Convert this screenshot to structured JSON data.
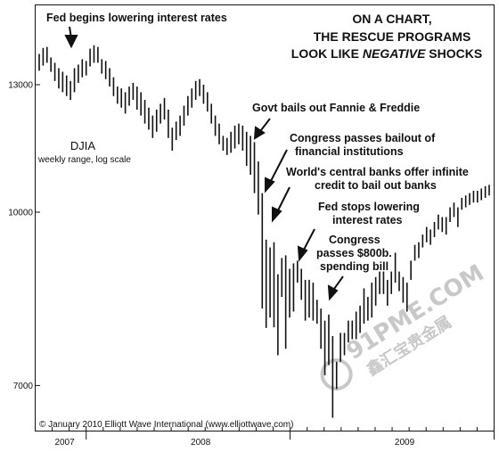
{
  "chart_data": {
    "type": "bar",
    "subtype": "weekly range bars",
    "title_lines": [
      "ON A CHART,",
      "THE RESCUE PROGRAMS",
      "LOOK LIKE ",
      "NEGATIVE",
      " SHOCKS"
    ],
    "series_name": "DJIA",
    "series_note": "weekly range, log scale",
    "y_scale": "log",
    "y_ticks": [
      13000,
      10000,
      7000
    ],
    "y_tick_labels": [
      "13000",
      "10000",
      "7000"
    ],
    "ylim": [
      6400,
      14800
    ],
    "x_ticks": [
      "2007",
      "2008",
      "2009"
    ],
    "x_range": [
      "2007-10",
      "2010-01"
    ],
    "weeks": [
      [
        13380,
        13850
      ],
      [
        13520,
        14020
      ],
      [
        13600,
        14050
      ],
      [
        13350,
        13750
      ],
      [
        13100,
        13600
      ],
      [
        12900,
        13450
      ],
      [
        12800,
        13350
      ],
      [
        12700,
        13250
      ],
      [
        12600,
        13100
      ],
      [
        12800,
        13450
      ],
      [
        13050,
        13550
      ],
      [
        13200,
        13700
      ],
      [
        13250,
        13650
      ],
      [
        13500,
        14000
      ],
      [
        13600,
        14100
      ],
      [
        13600,
        14050
      ],
      [
        13300,
        13700
      ],
      [
        13150,
        13650
      ],
      [
        12950,
        13450
      ],
      [
        12700,
        13200
      ],
      [
        12500,
        12950
      ],
      [
        12400,
        12900
      ],
      [
        12250,
        12800
      ],
      [
        12450,
        12950
      ],
      [
        12600,
        13050
      ],
      [
        12350,
        12950
      ],
      [
        12200,
        12800
      ],
      [
        12000,
        12600
      ],
      [
        11850,
        12400
      ],
      [
        11650,
        12200
      ],
      [
        11800,
        12350
      ],
      [
        12000,
        12500
      ],
      [
        12100,
        12650
      ],
      [
        11650,
        12350
      ],
      [
        11350,
        11900
      ],
      [
        11600,
        12050
      ],
      [
        11700,
        12200
      ],
      [
        11950,
        12450
      ],
      [
        12200,
        12700
      ],
      [
        12400,
        12900
      ],
      [
        12600,
        13100
      ],
      [
        12700,
        13150
      ],
      [
        12500,
        13000
      ],
      [
        12300,
        12800
      ],
      [
        12000,
        12500
      ],
      [
        11700,
        12200
      ],
      [
        11500,
        12000
      ],
      [
        11350,
        11700
      ],
      [
        11250,
        11650
      ],
      [
        11300,
        11800
      ],
      [
        11400,
        11950
      ],
      [
        11500,
        12000
      ],
      [
        11350,
        11950
      ],
      [
        11000,
        11800
      ],
      [
        10800,
        11700
      ],
      [
        10400,
        11550
      ],
      [
        9950,
        11100
      ],
      [
        8200,
        10400
      ],
      [
        7880,
        9450
      ],
      [
        8050,
        9300
      ],
      [
        7890,
        9400
      ],
      [
        7450,
        8800
      ],
      [
        8400,
        9100
      ],
      [
        7550,
        9150
      ],
      [
        8050,
        8900
      ],
      [
        8150,
        9000
      ],
      [
        8650,
        9050
      ],
      [
        8350,
        8900
      ],
      [
        8000,
        8700
      ],
      [
        8050,
        8700
      ],
      [
        8000,
        8650
      ],
      [
        7950,
        8350
      ],
      [
        7550,
        8200
      ],
      [
        7150,
        8000
      ],
      [
        7300,
        8100
      ],
      [
        6550,
        7750
      ],
      [
        6950,
        7350
      ],
      [
        7350,
        7800
      ],
      [
        7450,
        7800
      ],
      [
        7650,
        8000
      ],
      [
        7700,
        8000
      ],
      [
        7700,
        8150
      ],
      [
        7800,
        8250
      ],
      [
        7950,
        8550
      ],
      [
        8000,
        8400
      ],
      [
        8050,
        8650
      ],
      [
        8250,
        8750
      ],
      [
        8450,
        8850
      ],
      [
        8450,
        8850
      ],
      [
        8250,
        8700
      ],
      [
        8450,
        8850
      ],
      [
        8650,
        9200
      ],
      [
        8500,
        8850
      ],
      [
        8300,
        8750
      ],
      [
        8150,
        8650
      ],
      [
        8700,
        9050
      ],
      [
        9050,
        9350
      ],
      [
        9100,
        9400
      ],
      [
        9300,
        9550
      ],
      [
        9400,
        9700
      ],
      [
        9350,
        9650
      ],
      [
        9500,
        9800
      ],
      [
        9650,
        9950
      ],
      [
        9600,
        9900
      ],
      [
        9550,
        9900
      ],
      [
        9800,
        10100
      ],
      [
        9900,
        10200
      ],
      [
        9700,
        10100
      ],
      [
        10050,
        10300
      ],
      [
        10100,
        10350
      ],
      [
        10150,
        10400
      ],
      [
        10200,
        10450
      ],
      [
        10200,
        10450
      ],
      [
        10250,
        10500
      ],
      [
        10300,
        10550
      ],
      [
        10350,
        10580
      ]
    ],
    "annotations": [
      {
        "label": "Fed begins lowering interest rates"
      },
      {
        "label": "Govt bails out Fannie & Freddie"
      },
      {
        "label": "Congress passes bailout of financial institutions"
      },
      {
        "label": "World's central banks offer infinite credit to bail out banks"
      },
      {
        "label": "Fed stops lowering interest rates"
      },
      {
        "label": "Congress passes $800b. spending bill"
      }
    ]
  },
  "labels": {
    "fed_begins": [
      "Fed begins lowering interest rates"
    ],
    "govt_bails": [
      "Govt bails out Fannie & Freddie"
    ],
    "congress_bailout": [
      "Congress passes bailout of",
      "financial institutions"
    ],
    "central_banks": [
      "World's central banks offer infinite",
      "credit to bail out banks"
    ],
    "fed_stops": [
      "Fed stops lowering",
      "interest rates"
    ],
    "spending_bill": [
      "Congress",
      "passes $800b.",
      "spending bill"
    ]
  },
  "copyright": "© January 2010 Elliott Wave International (www.elliottwave.com)",
  "watermark": {
    "line1": "91PME.COM",
    "line2": "鑫汇宝贵金属"
  },
  "colors": {
    "ink": "#111111",
    "background": "#ffffff",
    "watermark": "#c8c8c8"
  }
}
